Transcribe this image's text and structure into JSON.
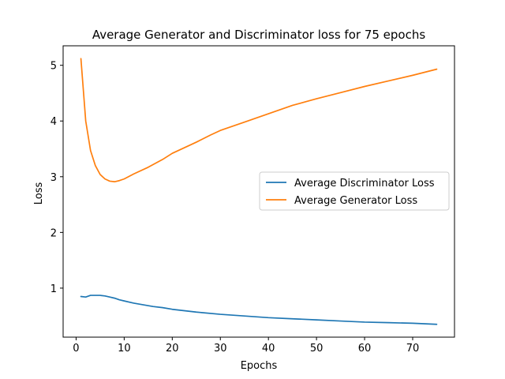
{
  "chart_data": {
    "type": "line",
    "title": "Average Generator and Discriminator loss for 75 epochs",
    "xlabel": "Epochs",
    "ylabel": "Loss",
    "xlim": [
      -2.7,
      78.7
    ],
    "ylim": [
      0.12,
      5.35
    ],
    "xticks": [
      0,
      10,
      20,
      30,
      40,
      50,
      60,
      70
    ],
    "yticks": [
      1,
      2,
      3,
      4,
      5
    ],
    "grid": false,
    "legend_position": "center-right",
    "series": [
      {
        "name": "Average Discriminator Loss",
        "color": "#1f77b4",
        "x": [
          1,
          2,
          3,
          4,
          5,
          6,
          7,
          8,
          9,
          10,
          12,
          14,
          16,
          18,
          20,
          25,
          30,
          35,
          40,
          45,
          50,
          55,
          60,
          65,
          70,
          75
        ],
        "y": [
          0.85,
          0.84,
          0.87,
          0.87,
          0.87,
          0.86,
          0.84,
          0.82,
          0.79,
          0.77,
          0.73,
          0.7,
          0.67,
          0.65,
          0.62,
          0.57,
          0.53,
          0.5,
          0.47,
          0.45,
          0.43,
          0.41,
          0.39,
          0.38,
          0.37,
          0.35
        ]
      },
      {
        "name": "Average Generator Loss",
        "color": "#ff7f0e",
        "x": [
          1,
          2,
          3,
          4,
          5,
          6,
          7,
          8,
          9,
          10,
          12,
          15,
          18,
          20,
          25,
          28,
          30,
          35,
          40,
          45,
          50,
          55,
          60,
          65,
          70,
          75
        ],
        "y": [
          5.12,
          4.0,
          3.47,
          3.2,
          3.04,
          2.96,
          2.92,
          2.91,
          2.93,
          2.96,
          3.05,
          3.17,
          3.31,
          3.42,
          3.62,
          3.75,
          3.83,
          3.98,
          4.13,
          4.28,
          4.4,
          4.51,
          4.62,
          4.72,
          4.82,
          4.93
        ]
      }
    ]
  }
}
